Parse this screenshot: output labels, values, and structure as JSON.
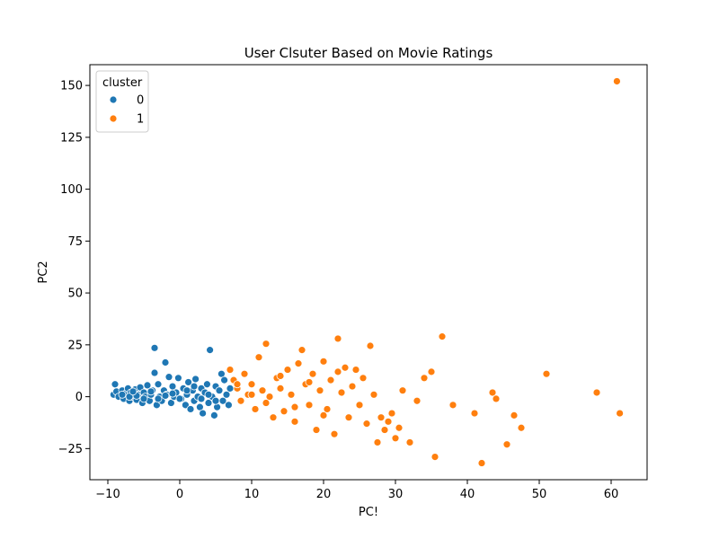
{
  "chart_data": {
    "type": "scatter",
    "title": "User Clsuter Based on Movie Ratings",
    "xlabel": "PC!",
    "ylabel": "PC2",
    "xlim": [
      -12.5,
      65
    ],
    "ylim": [
      -40,
      160
    ],
    "xticks": [
      -10,
      0,
      10,
      20,
      30,
      40,
      50,
      60
    ],
    "yticks": [
      -25,
      0,
      25,
      50,
      75,
      100,
      125,
      150
    ],
    "grid": false,
    "legend": {
      "title": "cluster",
      "placement": "top-left"
    },
    "series": [
      {
        "name": "0",
        "color": "#1f77b4",
        "points": [
          [
            -9,
            6
          ],
          [
            -9.2,
            1
          ],
          [
            -8.8,
            2.5
          ],
          [
            -8.5,
            0
          ],
          [
            -8,
            3
          ],
          [
            -7.8,
            -1
          ],
          [
            -7.5,
            1.5
          ],
          [
            -7.2,
            4
          ],
          [
            -7,
            -2
          ],
          [
            -6.8,
            2
          ],
          [
            -6.5,
            0
          ],
          [
            -6.2,
            3.5
          ],
          [
            -6,
            -1.5
          ],
          [
            -5.8,
            1
          ],
          [
            -5.5,
            4.5
          ],
          [
            -5.2,
            -3
          ],
          [
            -5,
            2
          ],
          [
            -4.8,
            0
          ],
          [
            -4.5,
            5.5
          ],
          [
            -4.2,
            -2
          ],
          [
            -4,
            1
          ],
          [
            -3.8,
            3
          ],
          [
            -3.5,
            23.5
          ],
          [
            -3.5,
            11.5
          ],
          [
            -3.2,
            -4
          ],
          [
            -3,
            6
          ],
          [
            -2.8,
            0
          ],
          [
            -2.5,
            -2
          ],
          [
            -2.2,
            3
          ],
          [
            -2,
            16.5
          ],
          [
            -1.8,
            1
          ],
          [
            -1.5,
            9.5
          ],
          [
            -1.2,
            -3
          ],
          [
            -1,
            5
          ],
          [
            -0.8,
            0
          ],
          [
            -0.5,
            2
          ],
          [
            -0.2,
            9
          ],
          [
            0.2,
            -1
          ],
          [
            0.5,
            4
          ],
          [
            0.8,
            -4
          ],
          [
            1,
            1
          ],
          [
            1.2,
            7
          ],
          [
            1.5,
            -6
          ],
          [
            1.8,
            3
          ],
          [
            2,
            -2
          ],
          [
            2.2,
            8.5
          ],
          [
            2.5,
            0
          ],
          [
            2.8,
            -5
          ],
          [
            3,
            4
          ],
          [
            3.2,
            -8
          ],
          [
            3.5,
            2
          ],
          [
            3.8,
            6
          ],
          [
            4,
            -3
          ],
          [
            4.2,
            22.5
          ],
          [
            4.5,
            0
          ],
          [
            4.8,
            -9
          ],
          [
            5,
            5
          ],
          [
            5.2,
            -5
          ],
          [
            5.5,
            3
          ],
          [
            5.8,
            11
          ],
          [
            6,
            -2
          ],
          [
            6.2,
            8
          ],
          [
            6.5,
            1
          ],
          [
            6.8,
            -4
          ],
          [
            7,
            4
          ],
          [
            -6,
            0.5
          ],
          [
            -5,
            -1
          ],
          [
            -4,
            2.5
          ],
          [
            -3,
            -1
          ],
          [
            -2,
            0.5
          ],
          [
            -1,
            1.5
          ],
          [
            0,
            -1
          ],
          [
            1,
            3
          ],
          [
            2,
            5
          ],
          [
            3,
            -1
          ],
          [
            4,
            1
          ],
          [
            5,
            -2
          ],
          [
            -8,
            1
          ],
          [
            -7,
            0
          ],
          [
            -6.5,
            2.5
          ]
        ]
      },
      {
        "name": "1",
        "color": "#ff7f0e",
        "points": [
          [
            7,
            13
          ],
          [
            7.5,
            8
          ],
          [
            8,
            4
          ],
          [
            8.5,
            -2
          ],
          [
            9,
            11
          ],
          [
            9.5,
            1
          ],
          [
            10,
            6
          ],
          [
            10.5,
            -6
          ],
          [
            11,
            19
          ],
          [
            11.5,
            3
          ],
          [
            12,
            25.5
          ],
          [
            12.5,
            0
          ],
          [
            13,
            -10
          ],
          [
            13.5,
            9
          ],
          [
            14,
            4
          ],
          [
            14.5,
            -7
          ],
          [
            15,
            13
          ],
          [
            15.5,
            1
          ],
          [
            16,
            -12
          ],
          [
            16.5,
            16
          ],
          [
            17,
            22.5
          ],
          [
            17.5,
            6
          ],
          [
            18,
            -4
          ],
          [
            18.5,
            11
          ],
          [
            19,
            -16
          ],
          [
            19.5,
            3
          ],
          [
            20,
            17
          ],
          [
            20.5,
            -6
          ],
          [
            21,
            8
          ],
          [
            21.5,
            -18
          ],
          [
            22,
            28
          ],
          [
            22.5,
            2
          ],
          [
            23,
            14
          ],
          [
            23.5,
            -10
          ],
          [
            24,
            5
          ],
          [
            24.5,
            13
          ],
          [
            25,
            -4
          ],
          [
            25.5,
            9
          ],
          [
            26,
            -13
          ],
          [
            26.5,
            24.5
          ],
          [
            27,
            1
          ],
          [
            27.5,
            -22
          ],
          [
            28,
            -10
          ],
          [
            28.5,
            -16
          ],
          [
            29,
            -12
          ],
          [
            29.5,
            -8
          ],
          [
            30,
            -20
          ],
          [
            30.5,
            -15
          ],
          [
            31,
            3
          ],
          [
            32,
            -22
          ],
          [
            33,
            -2
          ],
          [
            34,
            9
          ],
          [
            35,
            12
          ],
          [
            35.5,
            -29
          ],
          [
            36.5,
            29
          ],
          [
            38,
            -4
          ],
          [
            41,
            -8
          ],
          [
            42,
            -32
          ],
          [
            43.5,
            2
          ],
          [
            44,
            -1
          ],
          [
            45.5,
            -23
          ],
          [
            46.5,
            -9
          ],
          [
            47.5,
            -15
          ],
          [
            51,
            11
          ],
          [
            58,
            2
          ],
          [
            60.8,
            152
          ],
          [
            61.2,
            -8
          ],
          [
            8,
            6
          ],
          [
            10,
            1
          ],
          [
            12,
            -3
          ],
          [
            14,
            10
          ],
          [
            16,
            -5
          ],
          [
            18,
            7
          ],
          [
            20,
            -9
          ],
          [
            22,
            12
          ]
        ]
      }
    ]
  }
}
